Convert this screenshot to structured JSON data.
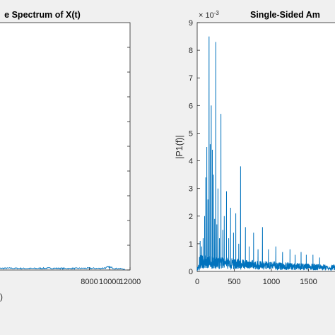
{
  "colors": {
    "background": "#f0f0f0",
    "axes_face": "#ffffff",
    "axes_edge": "#262626",
    "series": "#0072bd"
  },
  "chart_data": [
    {
      "type": "line",
      "title": "e Spectrum of X(t)",
      "xlabel": ")",
      "ylabel": "",
      "xlim": [
        -1500,
        12000
      ],
      "ylim": [
        0,
        1
      ],
      "grid": false,
      "x_ticks": [
        {
          "value": 8000,
          "label": "8000"
        },
        {
          "value": 10000,
          "label": "10000"
        },
        {
          "value": 12000,
          "label": "12000"
        }
      ],
      "y_ticks": [
        {
          "value": 0.0
        },
        {
          "value": 0.1
        },
        {
          "value": 0.2
        },
        {
          "value": 0.3
        },
        {
          "value": 0.4
        },
        {
          "value": 0.5
        },
        {
          "value": 0.6
        },
        {
          "value": 0.7
        },
        {
          "value": 0.8
        },
        {
          "value": 0.9
        }
      ],
      "series": [
        {
          "x": [
            -1500,
            0,
            2000,
            4000,
            6000,
            8000,
            9000,
            10000,
            10500,
            11000,
            11500
          ],
          "y": [
            0.006,
            0.007,
            0.006,
            0.007,
            0.006,
            0.007,
            0.006,
            0.011,
            0.006,
            0.005,
            0.003
          ]
        }
      ]
    },
    {
      "type": "line",
      "title": "Single-Sided Am",
      "xlabel": "",
      "ylabel": "|P1(f)|",
      "xlim": [
        0,
        2000
      ],
      "ylim": [
        0,
        9
      ],
      "y_exponent": "× 10",
      "y_exponent_power": "-3",
      "grid": false,
      "x_ticks": [
        {
          "value": 0,
          "label": "0"
        },
        {
          "value": 500,
          "label": "500"
        },
        {
          "value": 1000,
          "label": "1000"
        },
        {
          "value": 1500,
          "label": "1500"
        }
      ],
      "y_ticks": [
        {
          "value": 0,
          "label": "0"
        },
        {
          "value": 1,
          "label": "1"
        },
        {
          "value": 2,
          "label": "2"
        },
        {
          "value": 3,
          "label": "3"
        },
        {
          "value": 4,
          "label": "4"
        },
        {
          "value": 5,
          "label": "5"
        },
        {
          "value": 6,
          "label": "6"
        },
        {
          "value": 7,
          "label": "7"
        },
        {
          "value": 8,
          "label": "8"
        },
        {
          "value": 9,
          "label": "9"
        }
      ],
      "series": [
        {
          "baseline": 0.4,
          "peaks": [
            {
              "x": 40,
              "y": 1.1
            },
            {
              "x": 60,
              "y": 0.9
            },
            {
              "x": 80,
              "y": 1.2
            },
            {
              "x": 100,
              "y": 2.0
            },
            {
              "x": 115,
              "y": 3.4
            },
            {
              "x": 130,
              "y": 4.5
            },
            {
              "x": 145,
              "y": 2.6
            },
            {
              "x": 160,
              "y": 8.5
            },
            {
              "x": 175,
              "y": 4.6
            },
            {
              "x": 190,
              "y": 6.0
            },
            {
              "x": 205,
              "y": 4.4
            },
            {
              "x": 220,
              "y": 3.5
            },
            {
              "x": 235,
              "y": 1.9
            },
            {
              "x": 250,
              "y": 8.3
            },
            {
              "x": 265,
              "y": 1.7
            },
            {
              "x": 280,
              "y": 3.0
            },
            {
              "x": 300,
              "y": 1.2
            },
            {
              "x": 320,
              "y": 5.7
            },
            {
              "x": 345,
              "y": 1.5
            },
            {
              "x": 365,
              "y": 2.0
            },
            {
              "x": 395,
              "y": 2.9
            },
            {
              "x": 425,
              "y": 1.2
            },
            {
              "x": 450,
              "y": 2.3
            },
            {
              "x": 490,
              "y": 1.4
            },
            {
              "x": 520,
              "y": 2.1
            },
            {
              "x": 560,
              "y": 1.0
            },
            {
              "x": 585,
              "y": 3.8
            },
            {
              "x": 650,
              "y": 1.6
            },
            {
              "x": 700,
              "y": 0.9
            },
            {
              "x": 760,
              "y": 1.4
            },
            {
              "x": 820,
              "y": 0.8
            },
            {
              "x": 880,
              "y": 1.6
            },
            {
              "x": 960,
              "y": 0.8
            },
            {
              "x": 1060,
              "y": 0.9
            },
            {
              "x": 1150,
              "y": 0.7
            },
            {
              "x": 1250,
              "y": 0.8
            },
            {
              "x": 1320,
              "y": 0.6
            },
            {
              "x": 1400,
              "y": 0.7
            },
            {
              "x": 1470,
              "y": 0.6
            },
            {
              "x": 1560,
              "y": 0.6
            },
            {
              "x": 1650,
              "y": 0.5
            }
          ]
        }
      ]
    }
  ]
}
